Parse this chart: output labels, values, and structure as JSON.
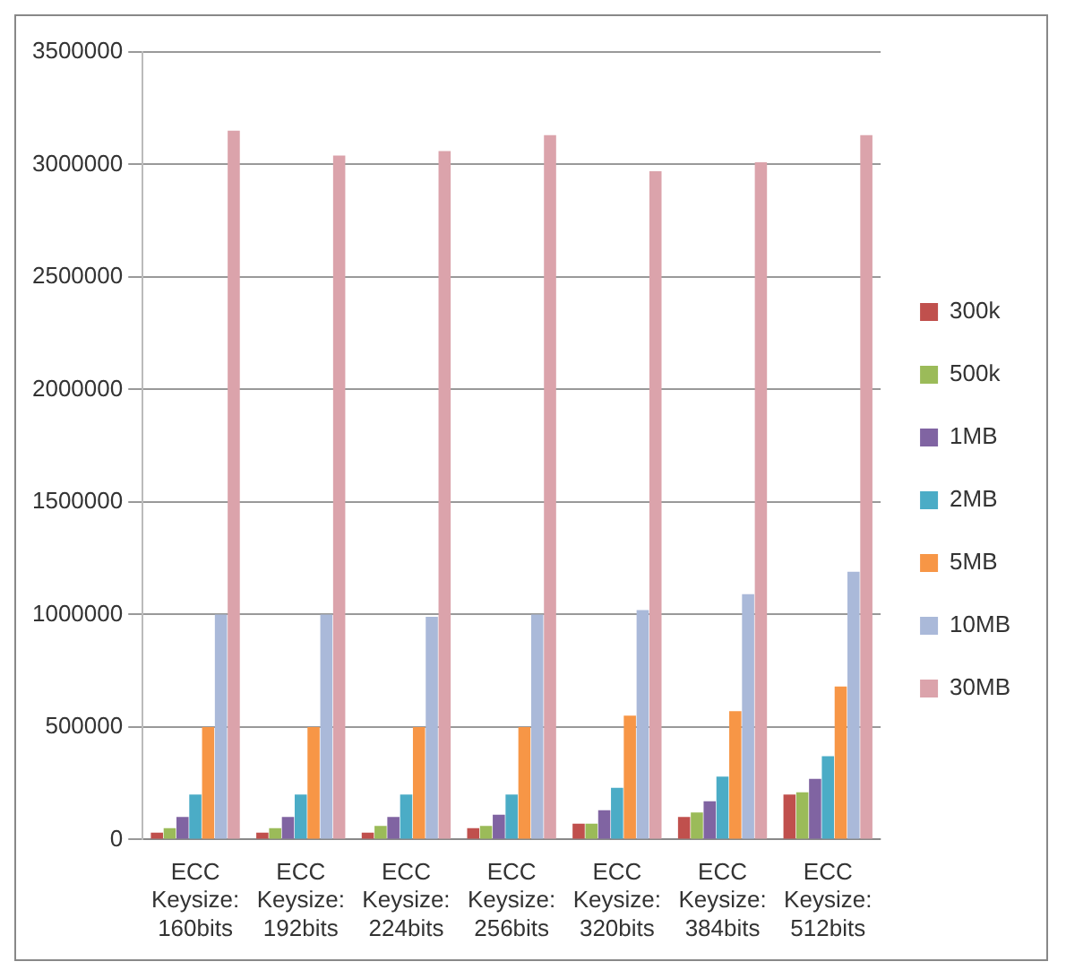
{
  "chart_data": {
    "type": "bar",
    "categories": [
      "ECC Keysize: 160bits",
      "ECC Keysize: 192bits",
      "ECC Keysize: 224bits",
      "ECC Keysize: 256bits",
      "ECC Keysize: 320bits",
      "ECC Keysize: 384bits",
      "ECC Keysize: 512bits"
    ],
    "series": [
      {
        "name": "300k",
        "color": "#c0504d",
        "values": [
          30000,
          30000,
          30000,
          50000,
          70000,
          100000,
          200000
        ]
      },
      {
        "name": "500k",
        "color": "#9bbb59",
        "values": [
          50000,
          50000,
          60000,
          60000,
          70000,
          120000,
          210000
        ]
      },
      {
        "name": "1MB",
        "color": "#8064a2",
        "values": [
          100000,
          100000,
          100000,
          110000,
          130000,
          170000,
          270000
        ]
      },
      {
        "name": "2MB",
        "color": "#4bacc6",
        "values": [
          200000,
          200000,
          200000,
          200000,
          230000,
          280000,
          370000
        ]
      },
      {
        "name": "5MB",
        "color": "#f79646",
        "values": [
          500000,
          500000,
          500000,
          500000,
          550000,
          570000,
          680000
        ]
      },
      {
        "name": "10MB",
        "color": "#aab9d9",
        "values": [
          1000000,
          1000000,
          990000,
          1000000,
          1020000,
          1090000,
          1190000
        ]
      },
      {
        "name": "30MB",
        "color": "#dba3ab",
        "values": [
          3150000,
          3040000,
          3060000,
          3130000,
          2970000,
          3010000,
          3130000
        ]
      }
    ],
    "ylim": [
      0,
      3500000
    ],
    "yticks": [
      0,
      500000,
      1000000,
      1500000,
      2000000,
      2500000,
      3000000,
      3500000
    ],
    "grid": "y",
    "legend": "right"
  }
}
